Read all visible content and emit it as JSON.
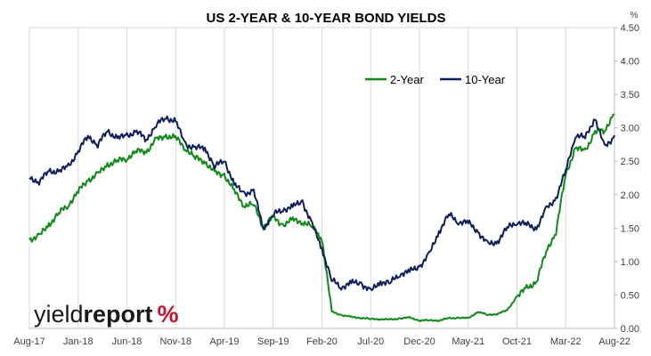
{
  "logo": {
    "part1": "yield",
    "part2": "report",
    "part3": "%"
  },
  "chart_data": {
    "type": "line",
    "title": "US 2-YEAR & 10-YEAR BOND YIELDS",
    "y_unit": "%",
    "xlabel": "",
    "ylabel": "",
    "ylim": [
      0,
      4.5
    ],
    "y_ticks": [
      "0.00",
      "0.50",
      "1.00",
      "1.50",
      "2.00",
      "2.50",
      "3.00",
      "3.50",
      "4.00",
      "4.50"
    ],
    "x_ticks": [
      "Aug-17",
      "Jan-18",
      "Jun-18",
      "Nov-18",
      "Apr-19",
      "Sep-19",
      "Feb-20",
      "Jul-20",
      "Dec-20",
      "May-21",
      "Oct-21",
      "Mar-22",
      "Aug-22"
    ],
    "grid": "vertical",
    "legend_position": "top-right",
    "colors": {
      "2-Year": "#0e8a16",
      "10-Year": "#0d1f5c"
    },
    "series": [
      {
        "name": "2-Year",
        "x": [
          "2017-08",
          "2017-09",
          "2017-10",
          "2017-11",
          "2017-12",
          "2018-01",
          "2018-02",
          "2018-03",
          "2018-04",
          "2018-05",
          "2018-06",
          "2018-07",
          "2018-08",
          "2018-09",
          "2018-10",
          "2018-11",
          "2018-12",
          "2019-01",
          "2019-02",
          "2019-03",
          "2019-04",
          "2019-05",
          "2019-06",
          "2019-07",
          "2019-08",
          "2019-09",
          "2019-10",
          "2019-11",
          "2019-12",
          "2020-01",
          "2020-02",
          "2020-03",
          "2020-04",
          "2020-05",
          "2020-06",
          "2020-07",
          "2020-08",
          "2020-09",
          "2020-10",
          "2020-11",
          "2020-12",
          "2021-01",
          "2021-02",
          "2021-03",
          "2021-04",
          "2021-05",
          "2021-06",
          "2021-07",
          "2021-08",
          "2021-09",
          "2021-10",
          "2021-11",
          "2021-12",
          "2022-01",
          "2022-02",
          "2022-03",
          "2022-04",
          "2022-05",
          "2022-06",
          "2022-07",
          "2022-08"
        ],
        "values": [
          1.33,
          1.38,
          1.55,
          1.72,
          1.85,
          2.05,
          2.22,
          2.3,
          2.45,
          2.5,
          2.55,
          2.65,
          2.65,
          2.82,
          2.88,
          2.85,
          2.7,
          2.55,
          2.5,
          2.32,
          2.3,
          2.05,
          1.85,
          1.85,
          1.52,
          1.65,
          1.55,
          1.62,
          1.6,
          1.52,
          1.35,
          0.25,
          0.2,
          0.17,
          0.16,
          0.14,
          0.14,
          0.13,
          0.15,
          0.16,
          0.12,
          0.12,
          0.12,
          0.15,
          0.16,
          0.15,
          0.25,
          0.2,
          0.22,
          0.27,
          0.48,
          0.6,
          0.7,
          1.15,
          1.45,
          2.3,
          2.7,
          2.65,
          2.95,
          2.95,
          3.25
        ]
      },
      {
        "name": "10-Year",
        "x": [
          "2017-08",
          "2017-09",
          "2017-10",
          "2017-11",
          "2017-12",
          "2018-01",
          "2018-02",
          "2018-03",
          "2018-04",
          "2018-05",
          "2018-06",
          "2018-07",
          "2018-08",
          "2018-09",
          "2018-10",
          "2018-11",
          "2018-12",
          "2019-01",
          "2019-02",
          "2019-03",
          "2019-04",
          "2019-05",
          "2019-06",
          "2019-07",
          "2019-08",
          "2019-09",
          "2019-10",
          "2019-11",
          "2019-12",
          "2020-01",
          "2020-02",
          "2020-03",
          "2020-04",
          "2020-05",
          "2020-06",
          "2020-07",
          "2020-08",
          "2020-09",
          "2020-10",
          "2020-11",
          "2020-12",
          "2021-01",
          "2021-02",
          "2021-03",
          "2021-04",
          "2021-05",
          "2021-06",
          "2021-07",
          "2021-08",
          "2021-09",
          "2021-10",
          "2021-11",
          "2021-12",
          "2022-01",
          "2022-02",
          "2022-03",
          "2022-04",
          "2022-05",
          "2022-06",
          "2022-07",
          "2022-08"
        ],
        "values": [
          2.25,
          2.2,
          2.35,
          2.35,
          2.42,
          2.65,
          2.88,
          2.75,
          2.95,
          2.85,
          2.88,
          2.95,
          2.82,
          3.05,
          3.15,
          3.1,
          2.75,
          2.7,
          2.7,
          2.42,
          2.52,
          2.15,
          2.02,
          2.05,
          1.5,
          1.7,
          1.78,
          1.82,
          1.9,
          1.55,
          1.2,
          0.72,
          0.62,
          0.68,
          0.68,
          0.55,
          0.7,
          0.68,
          0.82,
          0.85,
          0.93,
          1.1,
          1.45,
          1.7,
          1.6,
          1.58,
          1.45,
          1.25,
          1.3,
          1.5,
          1.6,
          1.55,
          1.5,
          1.78,
          1.95,
          2.35,
          2.9,
          2.85,
          3.15,
          2.7,
          2.88
        ]
      }
    ]
  }
}
